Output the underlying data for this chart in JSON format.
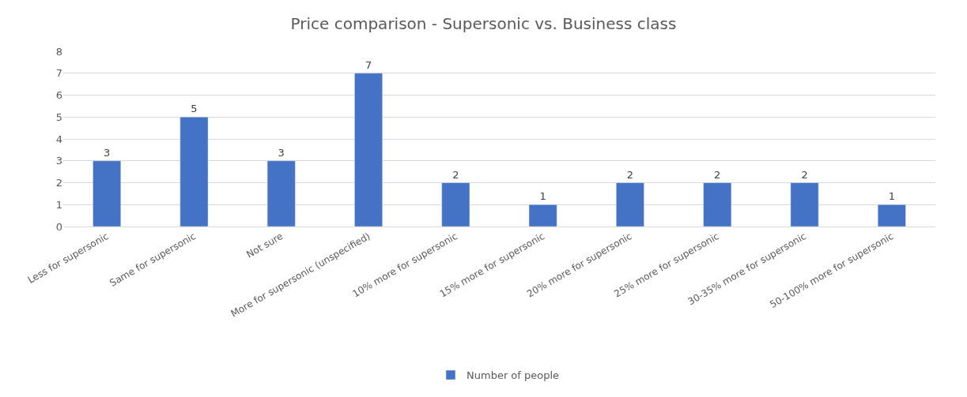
{
  "chart_data": {
    "type": "bar",
    "title": "Price comparison - Supersonic vs. Business class",
    "categories": [
      "Less for supersonic",
      "Same for supersonic",
      "Not sure",
      "More for supersonic (unspecified)",
      "10% more for supersonic",
      "15% more for supersonic",
      "20% more for supersonic",
      "25% more for supersonic",
      "30-35% more for supersonic",
      "50-100% more for supersonic"
    ],
    "series": [
      {
        "name": "Number of people",
        "color": "#4472c4",
        "values": [
          3,
          5,
          3,
          7,
          2,
          1,
          2,
          2,
          2,
          1
        ]
      }
    ],
    "ylim": [
      0,
      8
    ],
    "yticks": [
      0,
      1,
      2,
      3,
      4,
      5,
      6,
      7,
      8
    ],
    "grid": "y",
    "legend": "bottom",
    "data_labels": true
  }
}
